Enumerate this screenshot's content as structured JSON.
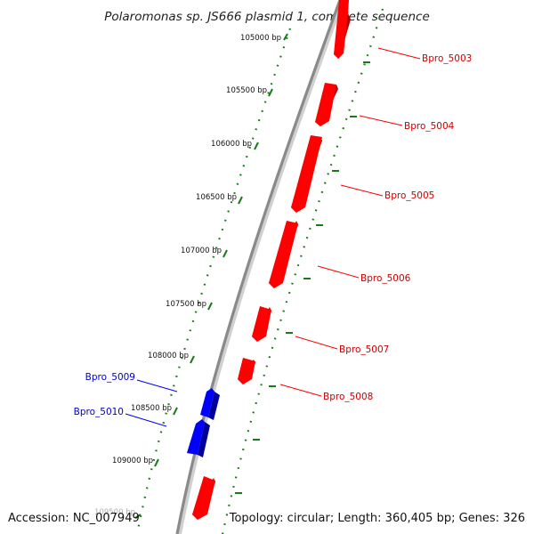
{
  "title": "Polaromonas sp. JS666 plasmid 1, complete sequence",
  "footer": {
    "accession": "Accession: NC_007949",
    "topology": "Topology: circular; Length: 360,405 bp; Genes: 326"
  },
  "colors": {
    "forward_gene": "#ff0000",
    "forward_gene_side": "#b00000",
    "reverse_gene": "#0000ff",
    "reverse_gene_side": "#000099",
    "tick": "#1a7a1a",
    "backbone": "#888888",
    "forward_label": "#cc0000",
    "reverse_label": "#0000cc"
  },
  "position_ticks": [
    {
      "label": "105000 bp"
    },
    {
      "label": "105500 bp"
    },
    {
      "label": "106000 bp"
    },
    {
      "label": "106500 bp"
    },
    {
      "label": "107000 bp"
    },
    {
      "label": "107500 bp"
    },
    {
      "label": "108000 bp"
    },
    {
      "label": "108500 bp"
    },
    {
      "label": "109000 bp"
    },
    {
      "label": "109500 bp"
    }
  ],
  "forward_genes": [
    {
      "label": "Bpro_5003"
    },
    {
      "label": "Bpro_5004"
    },
    {
      "label": "Bpro_5005"
    },
    {
      "label": "Bpro_5006"
    },
    {
      "label": "Bpro_5007"
    },
    {
      "label": "Bpro_5008"
    },
    {
      "label": ""
    }
  ],
  "reverse_genes": [
    {
      "label": "Bpro_5009"
    },
    {
      "label": "Bpro_5010"
    }
  ]
}
